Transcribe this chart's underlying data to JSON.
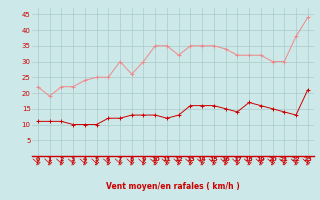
{
  "x": [
    0,
    1,
    2,
    3,
    4,
    5,
    6,
    7,
    8,
    9,
    10,
    11,
    12,
    13,
    14,
    15,
    16,
    17,
    18,
    19,
    20,
    21,
    22,
    23
  ],
  "wind_avg": [
    11,
    11,
    11,
    10,
    10,
    10,
    12,
    12,
    13,
    13,
    13,
    12,
    13,
    16,
    16,
    16,
    15,
    14,
    17,
    16,
    15,
    14,
    13,
    21
  ],
  "wind_gust": [
    22,
    19,
    22,
    22,
    24,
    25,
    25,
    30,
    26,
    30,
    35,
    35,
    32,
    35,
    35,
    35,
    34,
    32,
    32,
    32,
    30,
    30,
    38,
    44
  ],
  "bg_color": "#cce8e8",
  "grid_color": "#aacccc",
  "avg_color": "#cc0000",
  "gust_color": "#ee8888",
  "xlabel": "Vent moyen/en rafales ( km/h )",
  "ylim": [
    0,
    47
  ],
  "xlim": [
    -0.5,
    23.5
  ],
  "yticks": [
    5,
    10,
    15,
    20,
    25,
    30,
    35,
    40,
    45
  ],
  "xticks": [
    0,
    1,
    2,
    3,
    4,
    5,
    6,
    7,
    8,
    9,
    10,
    11,
    12,
    13,
    14,
    15,
    16,
    17,
    18,
    19,
    20,
    21,
    22,
    23
  ]
}
